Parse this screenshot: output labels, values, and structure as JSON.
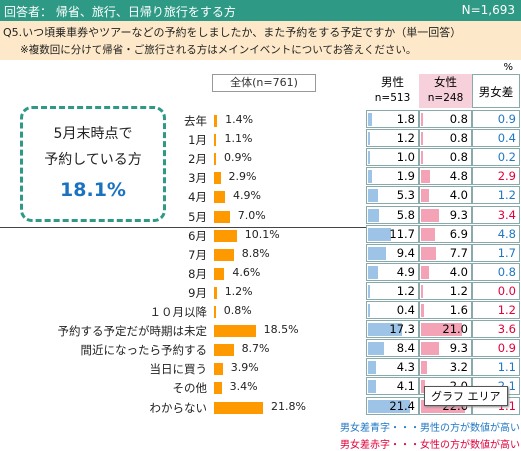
{
  "header": {
    "respondents": "回答者： 帰省、旅行、日帰り旅行をする方",
    "n": "N=1,693"
  },
  "question": {
    "line1": "Q5.いつ頃乗車券やツアーなどの予約をしましたか、また予約をする予定ですか（単一回答）",
    "line2": "※複数回に分けて帰省・ご旅行される方はメインイベントについてお答えください。"
  },
  "unit": "%",
  "total_label": "全体(n=761)",
  "callout": {
    "line1": "5月末時点で",
    "line2": "予約している方",
    "value": "18.1%"
  },
  "table_headers": {
    "male": "男性",
    "male_n": "n=513",
    "female": "女性",
    "female_n": "n=248",
    "diff": "男女差"
  },
  "colors": {
    "bar": "#ff9900",
    "male_bar": "#9dc3e6",
    "female_bar": "#f4a3b6",
    "blue": "#1f77c4",
    "red": "#e0003a",
    "teal": "#2e9a86"
  },
  "chart_data": {
    "type": "bar",
    "categories": [
      "去年",
      "1月",
      "2月",
      "3月",
      "4月",
      "5月",
      "6月",
      "7月",
      "8月",
      "9月",
      "１０月以降",
      "予約する予定だが時期は未定",
      "間近になったら予約する",
      "当日に買う",
      "その他",
      "わからない"
    ],
    "values": [
      1.4,
      1.1,
      0.9,
      2.9,
      4.9,
      7.0,
      10.1,
      8.8,
      4.6,
      1.2,
      0.8,
      18.5,
      8.7,
      3.9,
      3.4,
      21.8
    ],
    "value_labels": [
      "1.4%",
      "1.1%",
      "0.9%",
      "2.9%",
      "4.9%",
      "7.0%",
      "10.1%",
      "8.8%",
      "4.6%",
      "1.2%",
      "0.8%",
      "18.5%",
      "8.7%",
      "3.9%",
      "3.4%",
      "21.8%"
    ],
    "series": [
      {
        "name": "男性",
        "values": [
          "1.8",
          "1.2",
          "1.0",
          "1.9",
          "5.3",
          "5.8",
          "11.7",
          "9.4",
          "4.9",
          "1.2",
          "0.4",
          "17.3",
          "8.4",
          "4.3",
          "4.1",
          "21.4"
        ]
      },
      {
        "name": "女性",
        "values": [
          "0.8",
          "0.8",
          "0.8",
          "4.8",
          "4.0",
          "9.3",
          "6.9",
          "7.7",
          "4.0",
          "1.2",
          "1.6",
          "21.0",
          "9.3",
          "3.2",
          "2.0",
          "22.6"
        ]
      },
      {
        "name": "男女差",
        "values": [
          "0.9",
          "0.4",
          "0.2",
          "2.9",
          "1.2",
          "3.4",
          "4.8",
          "1.7",
          "0.8",
          "0.0",
          "1.2",
          "3.6",
          "0.9",
          "1.1",
          "2.1",
          "1.1"
        ]
      }
    ],
    "diff_color": [
      "blue",
      "blue",
      "blue",
      "red",
      "blue",
      "red",
      "blue",
      "blue",
      "blue",
      "red",
      "red",
      "red",
      "red",
      "blue",
      "blue",
      "red"
    ]
  },
  "footer": {
    "blue_note": "男女差青字・・・男性の方が数値が高い",
    "red_note": "男女差赤字・・・女性の方が数値が高い"
  },
  "tooltip": "グラフ エリア"
}
